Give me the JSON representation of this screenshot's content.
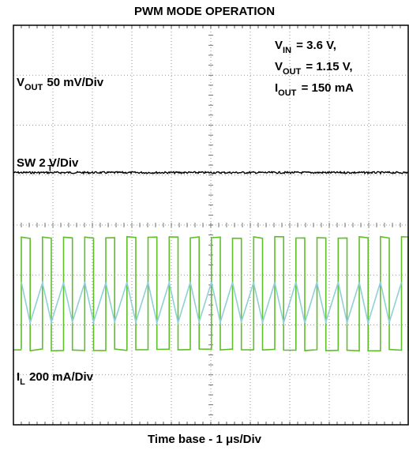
{
  "chart_data": {
    "type": "line",
    "title": "PWM MODE OPERATION",
    "xlabel": "Time base - 1 μs/Div",
    "conditions": [
      {
        "sym": "V",
        "sub": "IN",
        "val": " = 3.6 V,"
      },
      {
        "sym": "V",
        "sub": "OUT",
        "val": " = 1.15 V,"
      },
      {
        "sym": "I",
        "sub": "OUT",
        "val": " = 150 mA"
      }
    ],
    "grid": {
      "x_divisions": 10,
      "y_divisions": 8
    },
    "series": [
      {
        "name_sym": "V",
        "name_sub": "OUT",
        "name_scale": " 50 mV/Div",
        "color": "#000000",
        "waveform": "flat-noise",
        "level_div": 5.05
      },
      {
        "name": "SW 2 V/Div",
        "color": "#5fbf2a",
        "waveform": "square",
        "high_div": 3.75,
        "low_div": 1.5,
        "duty": 0.42,
        "period_div": 0.535
      },
      {
        "name_sym": "I",
        "name_sub": "L",
        "name_scale": " 200 mA/Div",
        "color": "#8fd0d8",
        "waveform": "triangle",
        "min_div": 2.05,
        "max_div": 2.85,
        "period_div": 0.535
      }
    ],
    "trigger_marker": "T"
  }
}
